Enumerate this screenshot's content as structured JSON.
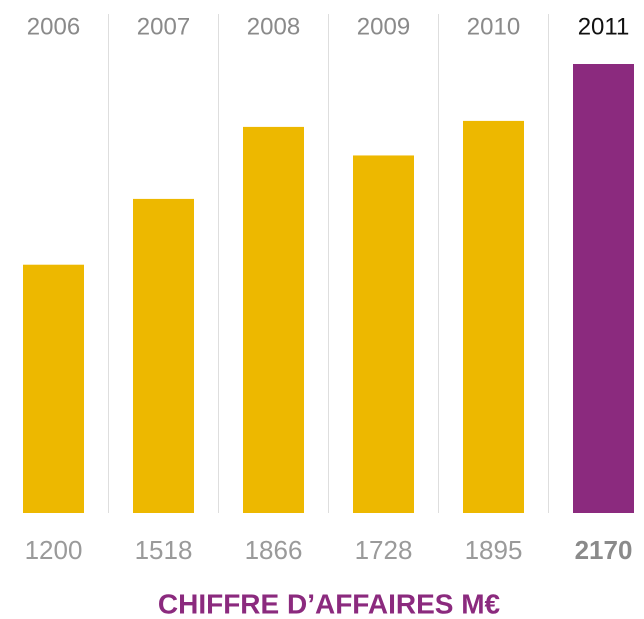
{
  "chart_data": {
    "type": "bar",
    "title": "CHIFFRE D’AFFAIRES M€",
    "categories": [
      "2006",
      "2007",
      "2008",
      "2009",
      "2010",
      "2011"
    ],
    "values": [
      1200,
      1518,
      1866,
      1728,
      1895,
      2170
    ],
    "colors": [
      "#edb800",
      "#edb800",
      "#edb800",
      "#edb800",
      "#edb800",
      "#8b2a7e"
    ],
    "highlight": [
      false,
      false,
      false,
      false,
      false,
      true
    ],
    "ylim": [
      0,
      2170
    ]
  }
}
